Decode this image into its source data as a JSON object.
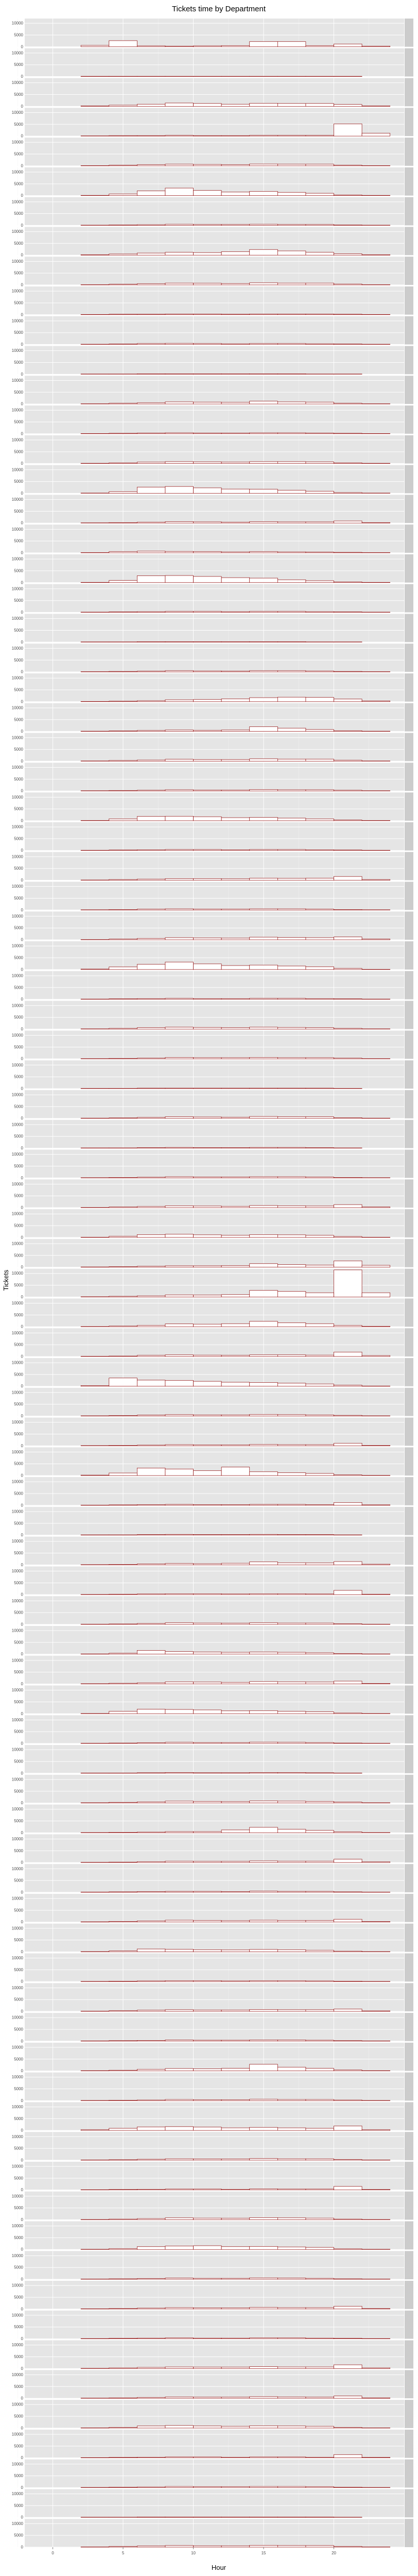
{
  "chart_data": {
    "type": "histogram",
    "title": "Tickets time by Department",
    "xlabel": "Hour",
    "ylabel": "Tickets",
    "xlim": [
      -2,
      25
    ],
    "x_ticks": [
      0,
      5,
      10,
      15,
      20
    ],
    "y_ticks": [
      0,
      5000,
      10000
    ],
    "y_tick_labels": [
      "0",
      "5000",
      "10000"
    ],
    "ylim_per_panel": [
      0,
      12000
    ],
    "bin_width": 2,
    "bin_edges": [
      0,
      2,
      4,
      6,
      8,
      10,
      12,
      14,
      16,
      18,
      20,
      22,
      24
    ],
    "facet_by": "Department",
    "n_panels": 85,
    "strip_labels": [],
    "bar_fill": "#ffffff",
    "bar_outline": "#8b0000",
    "panel_background": "#e5e5e5",
    "grid": true,
    "panel_values": [
      [
        0,
        600,
        2600,
        400,
        300,
        400,
        500,
        2200,
        2200,
        500,
        1200,
        300
      ],
      [
        0,
        100,
        100,
        100,
        100,
        100,
        100,
        100,
        100,
        100,
        100,
        0
      ],
      [
        0,
        200,
        500,
        900,
        1400,
        1200,
        900,
        1300,
        1200,
        1200,
        800,
        200
      ],
      [
        0,
        100,
        200,
        200,
        300,
        200,
        200,
        300,
        300,
        300,
        5200,
        1200
      ],
      [
        0,
        100,
        300,
        500,
        700,
        600,
        500,
        800,
        700,
        700,
        300,
        100
      ],
      [
        0,
        100,
        700,
        2000,
        3200,
        2200,
        1500,
        1800,
        1400,
        1000,
        300,
        100
      ],
      [
        0,
        100,
        200,
        300,
        500,
        400,
        400,
        500,
        400,
        400,
        200,
        100
      ],
      [
        0,
        200,
        500,
        900,
        1200,
        1100,
        1500,
        2400,
        1800,
        1200,
        600,
        200
      ],
      [
        0,
        100,
        300,
        500,
        800,
        700,
        600,
        900,
        800,
        800,
        400,
        100
      ],
      [
        0,
        100,
        200,
        200,
        300,
        300,
        200,
        300,
        300,
        300,
        200,
        100
      ],
      [
        0,
        100,
        200,
        400,
        500,
        400,
        300,
        400,
        400,
        300,
        200,
        100
      ],
      [
        0,
        100,
        100,
        200,
        200,
        200,
        200,
        200,
        200,
        100,
        100,
        0
      ],
      [
        0,
        100,
        300,
        500,
        900,
        800,
        700,
        1200,
        900,
        800,
        300,
        100
      ],
      [
        0,
        100,
        200,
        300,
        400,
        300,
        300,
        400,
        400,
        300,
        200,
        100
      ],
      [
        0,
        100,
        300,
        600,
        800,
        700,
        600,
        800,
        800,
        700,
        300,
        100
      ],
      [
        0,
        100,
        700,
        2600,
        2900,
        2300,
        1800,
        1700,
        1300,
        900,
        300,
        100
      ],
      [
        0,
        100,
        200,
        400,
        600,
        500,
        400,
        600,
        500,
        500,
        900,
        200
      ],
      [
        0,
        100,
        500,
        700,
        600,
        500,
        400,
        500,
        400,
        300,
        200,
        100
      ],
      [
        0,
        100,
        900,
        2900,
        3000,
        2600,
        2100,
        1900,
        1200,
        800,
        300,
        100
      ],
      [
        0,
        100,
        200,
        300,
        400,
        400,
        300,
        400,
        400,
        300,
        200,
        100
      ],
      [
        0,
        100,
        100,
        200,
        200,
        200,
        200,
        200,
        200,
        100,
        100,
        0
      ],
      [
        0,
        100,
        200,
        300,
        500,
        400,
        300,
        500,
        500,
        400,
        200,
        100
      ],
      [
        0,
        100,
        200,
        400,
        800,
        900,
        1200,
        1700,
        1900,
        1800,
        1100,
        300
      ],
      [
        0,
        100,
        200,
        400,
        600,
        500,
        600,
        2000,
        1400,
        800,
        300,
        100
      ],
      [
        0,
        100,
        300,
        500,
        800,
        700,
        700,
        1000,
        900,
        900,
        400,
        100
      ],
      [
        0,
        100,
        200,
        300,
        500,
        400,
        400,
        600,
        500,
        500,
        300,
        100
      ],
      [
        0,
        100,
        800,
        1800,
        1900,
        1700,
        1300,
        1400,
        1100,
        800,
        300,
        100
      ],
      [
        0,
        100,
        200,
        300,
        400,
        400,
        300,
        400,
        400,
        300,
        200,
        100
      ],
      [
        0,
        100,
        300,
        500,
        700,
        700,
        600,
        900,
        800,
        900,
        1600,
        300
      ],
      [
        0,
        100,
        200,
        400,
        500,
        400,
        400,
        500,
        500,
        400,
        200,
        100
      ],
      [
        0,
        100,
        300,
        600,
        900,
        800,
        700,
        1100,
        1000,
        900,
        1200,
        300
      ],
      [
        0,
        200,
        1100,
        2200,
        3200,
        2400,
        1700,
        1900,
        1500,
        1200,
        500,
        100
      ],
      [
        0,
        100,
        200,
        300,
        400,
        300,
        300,
        400,
        400,
        300,
        200,
        100
      ],
      [
        0,
        100,
        300,
        600,
        800,
        700,
        600,
        800,
        700,
        600,
        300,
        100
      ],
      [
        0,
        100,
        200,
        300,
        600,
        500,
        500,
        600,
        500,
        500,
        300,
        100
      ],
      [
        0,
        100,
        100,
        200,
        200,
        200,
        200,
        200,
        200,
        200,
        100,
        0
      ],
      [
        0,
        100,
        200,
        400,
        700,
        600,
        500,
        800,
        700,
        700,
        300,
        100
      ],
      [
        0,
        100,
        100,
        200,
        300,
        200,
        200,
        300,
        300,
        200,
        100,
        0
      ],
      [
        0,
        100,
        200,
        300,
        500,
        400,
        400,
        500,
        500,
        400,
        200,
        100
      ],
      [
        0,
        100,
        300,
        500,
        800,
        700,
        600,
        900,
        800,
        700,
        1300,
        300
      ],
      [
        0,
        100,
        500,
        1200,
        1400,
        1100,
        900,
        1200,
        1100,
        900,
        400,
        100
      ],
      [
        0,
        100,
        200,
        400,
        600,
        600,
        700,
        1500,
        1100,
        900,
        2700,
        800
      ],
      [
        0,
        100,
        300,
        500,
        900,
        800,
        1000,
        2800,
        2400,
        1800,
        11500,
        1800
      ],
      [
        0,
        100,
        300,
        600,
        1200,
        1100,
        1300,
        2300,
        1700,
        1300,
        600,
        200
      ],
      [
        0,
        100,
        200,
        500,
        700,
        600,
        500,
        700,
        700,
        600,
        1900,
        400
      ],
      [
        0,
        300,
        3500,
        2600,
        2500,
        2100,
        1700,
        1600,
        1300,
        1000,
        500,
        100
      ],
      [
        0,
        100,
        200,
        400,
        600,
        500,
        500,
        700,
        600,
        500,
        300,
        100
      ],
      [
        0,
        100,
        200,
        300,
        500,
        400,
        400,
        600,
        500,
        500,
        1100,
        200
      ],
      [
        0,
        200,
        1100,
        3200,
        2800,
        2100,
        3600,
        1600,
        1200,
        900,
        300,
        100
      ],
      [
        0,
        100,
        200,
        300,
        400,
        300,
        300,
        400,
        400,
        300,
        1200,
        200
      ],
      [
        0,
        100,
        100,
        200,
        300,
        200,
        200,
        300,
        200,
        200,
        100,
        0
      ],
      [
        0,
        100,
        200,
        400,
        600,
        500,
        700,
        1300,
        900,
        800,
        1400,
        300
      ],
      [
        0,
        100,
        200,
        300,
        400,
        400,
        300,
        400,
        400,
        300,
        1800,
        200
      ],
      [
        0,
        100,
        200,
        400,
        700,
        600,
        500,
        700,
        600,
        600,
        300,
        100
      ],
      [
        0,
        100,
        400,
        1600,
        1100,
        900,
        800,
        900,
        800,
        600,
        300,
        100
      ],
      [
        0,
        100,
        300,
        500,
        900,
        800,
        700,
        1000,
        900,
        800,
        1200,
        200
      ],
      [
        0,
        100,
        1000,
        1900,
        1800,
        1600,
        1200,
        1300,
        1000,
        800,
        300,
        100
      ],
      [
        0,
        100,
        200,
        300,
        500,
        400,
        400,
        600,
        500,
        400,
        200,
        100
      ],
      [
        0,
        100,
        100,
        200,
        300,
        200,
        200,
        300,
        300,
        200,
        100,
        0
      ],
      [
        0,
        100,
        300,
        500,
        800,
        700,
        600,
        900,
        800,
        700,
        400,
        100
      ],
      [
        0,
        100,
        200,
        300,
        500,
        500,
        1200,
        2300,
        1500,
        1000,
        400,
        100
      ],
      [
        0,
        100,
        200,
        400,
        600,
        500,
        500,
        700,
        600,
        600,
        1400,
        300
      ],
      [
        0,
        100,
        200,
        300,
        400,
        400,
        300,
        500,
        400,
        400,
        200,
        100
      ],
      [
        0,
        100,
        300,
        500,
        800,
        700,
        600,
        800,
        700,
        700,
        1200,
        200
      ],
      [
        0,
        100,
        400,
        1200,
        1100,
        900,
        800,
        1000,
        900,
        700,
        300,
        100
      ],
      [
        0,
        100,
        200,
        300,
        400,
        400,
        300,
        400,
        400,
        300,
        200,
        100
      ],
      [
        0,
        100,
        300,
        500,
        700,
        600,
        600,
        800,
        700,
        700,
        1000,
        200
      ],
      [
        0,
        100,
        200,
        300,
        500,
        400,
        400,
        500,
        500,
        400,
        200,
        100
      ],
      [
        0,
        100,
        300,
        700,
        1000,
        900,
        1100,
        2800,
        1600,
        1100,
        400,
        100
      ],
      [
        0,
        100,
        200,
        300,
        500,
        400,
        400,
        600,
        500,
        500,
        300,
        100
      ],
      [
        0,
        300,
        900,
        1500,
        1600,
        1400,
        1100,
        1300,
        1100,
        900,
        1900,
        300
      ],
      [
        0,
        100,
        200,
        400,
        600,
        500,
        500,
        700,
        600,
        600,
        300,
        100
      ],
      [
        0,
        100,
        200,
        300,
        400,
        400,
        300,
        500,
        400,
        400,
        1500,
        200
      ],
      [
        0,
        100,
        300,
        500,
        800,
        700,
        600,
        900,
        800,
        700,
        300,
        100
      ],
      [
        0,
        100,
        400,
        1200,
        1500,
        1600,
        1200,
        1300,
        1100,
        900,
        300,
        100
      ],
      [
        0,
        100,
        200,
        300,
        500,
        400,
        400,
        600,
        500,
        400,
        200,
        100
      ],
      [
        0,
        100,
        200,
        400,
        600,
        500,
        500,
        700,
        600,
        600,
        1200,
        200
      ],
      [
        0,
        100,
        200,
        300,
        400,
        300,
        300,
        400,
        400,
        300,
        200,
        100
      ],
      [
        0,
        100,
        300,
        500,
        700,
        600,
        600,
        800,
        700,
        700,
        1600,
        300
      ],
      [
        0,
        100,
        200,
        400,
        600,
        500,
        500,
        700,
        600,
        500,
        1000,
        200
      ],
      [
        0,
        100,
        300,
        900,
        1100,
        900,
        800,
        1000,
        900,
        800,
        300,
        100
      ],
      [
        0,
        100,
        200,
        300,
        400,
        400,
        300,
        400,
        400,
        300,
        1400,
        200
      ],
      [
        0,
        100,
        200,
        300,
        500,
        400,
        400,
        500,
        500,
        400,
        200,
        100
      ],
      [
        0,
        100,
        100,
        200,
        200,
        200,
        200,
        200,
        200,
        200,
        100,
        0
      ],
      [
        0,
        100,
        300,
        500,
        700,
        600,
        600,
        800,
        700,
        700,
        300,
        100
      ]
    ]
  }
}
